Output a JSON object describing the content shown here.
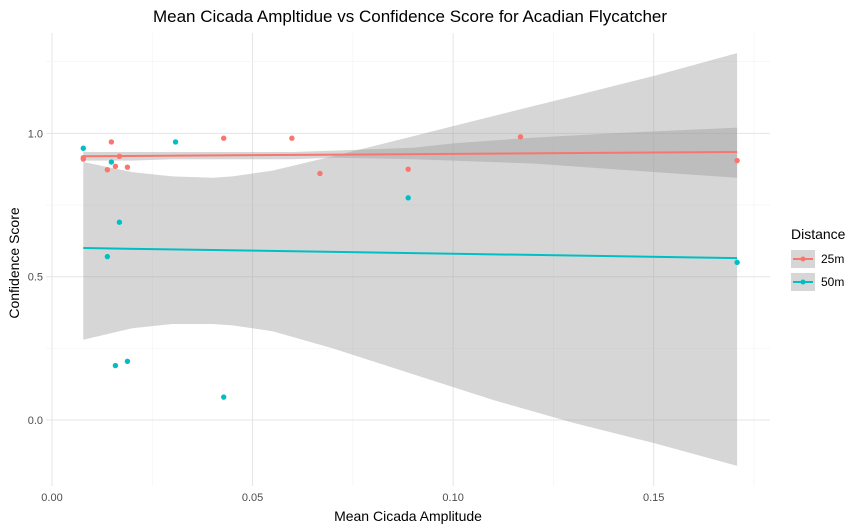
{
  "chart_data": {
    "type": "scatter",
    "title": "Mean Cicada Ampltidue vs Confidence Score for Acadian Flycatcher",
    "xlabel": "Mean Cicada Amplitude",
    "ylabel": "Confidence Score",
    "xlim": [
      -0.0015,
      0.179
    ],
    "ylim": [
      -0.23,
      1.35
    ],
    "x_ticks": [
      0.0,
      0.05,
      0.1,
      0.15
    ],
    "x_tick_labels": [
      "0.00",
      "0.05",
      "0.10",
      "0.15"
    ],
    "y_ticks": [
      0.0,
      0.5,
      1.0
    ],
    "y_tick_labels": [
      "0.0",
      "0.5",
      "1.0"
    ],
    "grid": true,
    "legend": {
      "title": "Distance",
      "position": "right"
    },
    "series": [
      {
        "name": "25m",
        "color": "#F8766D",
        "points": [
          [
            0.0078,
            0.915
          ],
          [
            0.0078,
            0.91
          ],
          [
            0.0138,
            0.873
          ],
          [
            0.0148,
            0.97
          ],
          [
            0.0158,
            0.885
          ],
          [
            0.0168,
            0.92
          ],
          [
            0.0188,
            0.882
          ],
          [
            0.0428,
            0.983
          ],
          [
            0.0598,
            0.983
          ],
          [
            0.0668,
            0.86
          ],
          [
            0.0888,
            0.875
          ],
          [
            0.1168,
            0.988
          ],
          [
            0.1708,
            0.905
          ]
        ],
        "fit": {
          "x": [
            0.0078,
            0.1708
          ],
          "y": [
            0.92,
            0.935
          ]
        },
        "band": {
          "x": [
            0.0078,
            0.02,
            0.03,
            0.04,
            0.06,
            0.07,
            0.09,
            0.1,
            0.12,
            0.14,
            0.1708
          ],
          "lower": [
            0.905,
            0.905,
            0.91,
            0.91,
            0.91,
            0.915,
            0.91,
            0.905,
            0.895,
            0.875,
            0.845
          ],
          "upper": [
            0.935,
            0.935,
            0.935,
            0.935,
            0.935,
            0.94,
            0.95,
            0.965,
            0.985,
            1.0,
            1.02
          ]
        }
      },
      {
        "name": "50m",
        "color": "#00BFC4",
        "points": [
          [
            0.0078,
            0.948
          ],
          [
            0.0138,
            0.57
          ],
          [
            0.0148,
            0.9
          ],
          [
            0.0158,
            0.19
          ],
          [
            0.0168,
            0.69
          ],
          [
            0.0188,
            0.205
          ],
          [
            0.0308,
            0.97
          ],
          [
            0.0428,
            0.08
          ],
          [
            0.0888,
            0.775
          ],
          [
            0.1708,
            0.55
          ]
        ],
        "fit": {
          "x": [
            0.0078,
            0.1708
          ],
          "y": [
            0.6,
            0.565
          ]
        },
        "band": {
          "x": [
            0.0078,
            0.02,
            0.03,
            0.04,
            0.045,
            0.055,
            0.07,
            0.09,
            0.11,
            0.13,
            0.15,
            0.1708
          ],
          "lower": [
            0.28,
            0.32,
            0.335,
            0.335,
            0.33,
            0.31,
            0.25,
            0.16,
            0.07,
            -0.01,
            -0.08,
            -0.16
          ],
          "upper": [
            0.9,
            0.865,
            0.85,
            0.845,
            0.85,
            0.87,
            0.92,
            0.99,
            1.06,
            1.13,
            1.2,
            1.28
          ]
        }
      }
    ]
  }
}
